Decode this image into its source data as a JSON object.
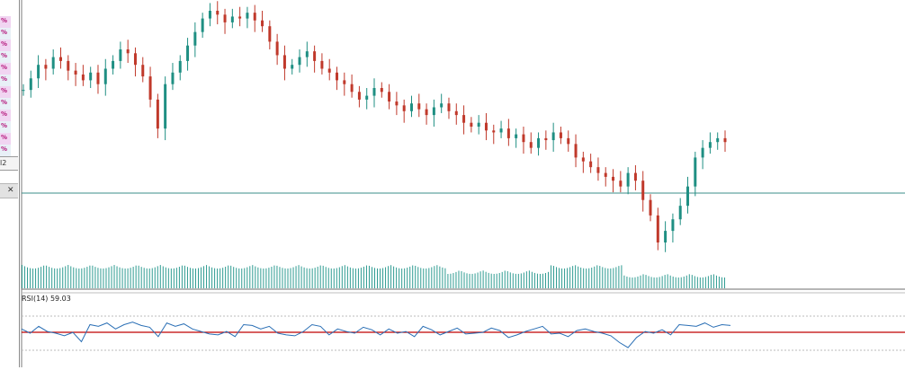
{
  "symbol_header": "",
  "rsi_indicator": {
    "label": "RSI(14) 59.03",
    "levels": [
      70,
      30
    ],
    "color": "#2a6fb5",
    "level_color": "#c00000"
  },
  "price_chart": {
    "bull_color": "#1f8f83",
    "bear_color": "#c0392b",
    "hline_color": "#3b8e8a",
    "volume_color": "#2f9c92"
  },
  "left_panel": {
    "rows": [
      "%",
      "%",
      "%",
      "%",
      "%",
      "%",
      "%",
      "%",
      "%",
      "%",
      "%",
      "%",
      "%"
    ],
    "footer_text": "l2",
    "close_glyph": "✕"
  },
  "chart_data": {
    "type": "candlestick",
    "series": [
      {
        "name": "",
        "close": [
          55,
          61,
          68,
          66,
          72,
          70,
          65,
          63,
          60,
          64,
          58,
          66,
          70,
          76,
          74,
          68,
          62,
          50,
          35,
          58,
          64,
          70,
          78,
          85,
          92,
          96,
          94,
          90,
          93,
          92,
          95,
          91,
          88,
          80,
          73,
          66,
          68,
          72,
          75,
          70,
          66,
          64,
          60,
          58,
          54,
          50,
          52,
          56,
          54,
          49,
          47,
          44,
          48,
          45,
          42,
          46,
          48,
          44,
          42,
          38,
          36,
          38,
          34,
          33,
          35,
          30,
          32,
          28,
          25,
          30,
          29,
          33,
          30,
          27,
          20,
          18,
          15,
          12,
          10,
          8,
          5,
          12,
          8,
          -2,
          -10,
          -24,
          -18,
          -12,
          -5,
          5,
          20,
          25,
          28,
          30,
          28
        ]
      }
    ],
    "volume": [
      3,
      3,
      3,
      3,
      3,
      3,
      3,
      3,
      3,
      3,
      3,
      3,
      3,
      3,
      3,
      3,
      3,
      3,
      3,
      3,
      3,
      3,
      3,
      3,
      3,
      3,
      3,
      3,
      3,
      3,
      3,
      3,
      3,
      3,
      3,
      3,
      3,
      3,
      3,
      3,
      3,
      3,
      3,
      3,
      3,
      3,
      3,
      3,
      3,
      3,
      3,
      3,
      3,
      3,
      3,
      3,
      3,
      3,
      3,
      3,
      3,
      3,
      3,
      3,
      3,
      3,
      3,
      3,
      3,
      3,
      3,
      3,
      3,
      3,
      3,
      3,
      3,
      3,
      3,
      3,
      3,
      3,
      3,
      3,
      3,
      3,
      3,
      3,
      3,
      3,
      3,
      3,
      3,
      3,
      3
    ],
    "rsi": [
      55,
      50,
      58,
      52,
      50,
      47,
      51,
      40,
      60,
      58,
      62,
      55,
      60,
      63,
      59,
      57,
      46,
      62,
      58,
      61,
      55,
      52,
      49,
      48,
      52,
      46,
      60,
      59,
      55,
      58,
      50,
      48,
      47,
      52,
      60,
      58,
      48,
      55,
      52,
      50,
      57,
      54,
      48,
      55,
      50,
      52,
      46,
      58,
      54,
      48,
      52,
      56,
      49,
      50,
      51,
      56,
      53,
      45,
      48,
      52,
      55,
      58,
      49,
      50,
      46,
      53,
      55,
      52,
      50,
      47,
      39,
      33,
      45,
      52,
      50,
      54,
      48,
      60,
      59,
      58,
      62,
      57,
      60,
      59
    ]
  }
}
